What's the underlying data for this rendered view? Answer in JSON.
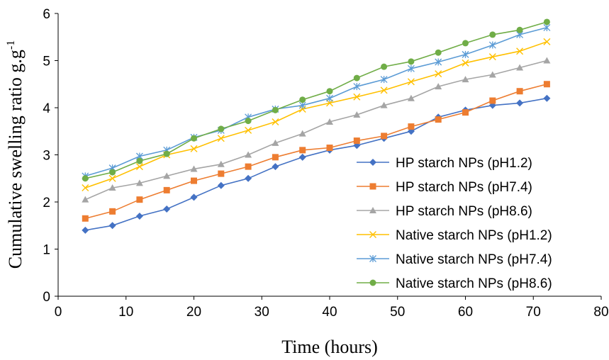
{
  "chart_data": {
    "type": "line",
    "title": "",
    "xlabel": "Time (hours)",
    "ylabel_main": "Cumulative swelling ratio g.g",
    "ylabel_sup": "-1",
    "xlim": [
      0,
      80
    ],
    "ylim": [
      0,
      6
    ],
    "x_ticks": [
      "0",
      "10",
      "20",
      "30",
      "40",
      "50",
      "60",
      "70",
      "80"
    ],
    "y_ticks": [
      "0",
      "1",
      "2",
      "3",
      "4",
      "5",
      "6"
    ],
    "grid": false,
    "legend_position": "bottom-right",
    "x": [
      4,
      8,
      12,
      16,
      20,
      24,
      28,
      32,
      36,
      40,
      44,
      48,
      52,
      56,
      60,
      64,
      68,
      72
    ],
    "series": [
      {
        "name": "HP starch NPs (pH1.2)",
        "color": "#4472C4",
        "marker": "diamond",
        "values": [
          1.4,
          1.5,
          1.7,
          1.85,
          2.1,
          2.35,
          2.5,
          2.75,
          2.95,
          3.1,
          3.2,
          3.35,
          3.5,
          3.8,
          3.95,
          4.05,
          4.1,
          4.2
        ]
      },
      {
        "name": "HP starch NPs (pH7.4)",
        "color": "#ED7D31",
        "marker": "square",
        "values": [
          1.65,
          1.8,
          2.05,
          2.25,
          2.45,
          2.6,
          2.75,
          2.95,
          3.1,
          3.15,
          3.3,
          3.4,
          3.6,
          3.75,
          3.9,
          4.15,
          4.35,
          4.5
        ]
      },
      {
        "name": "HP starch NPs (pH8.6)",
        "color": "#A5A5A5",
        "marker": "triangle",
        "values": [
          2.05,
          2.3,
          2.4,
          2.55,
          2.7,
          2.8,
          3.0,
          3.25,
          3.45,
          3.7,
          3.85,
          4.05,
          4.2,
          4.45,
          4.6,
          4.7,
          4.85,
          5.0
        ]
      },
      {
        "name": "Native starch NPs (pH1.2)",
        "color": "#FFC000",
        "marker": "x",
        "values": [
          2.3,
          2.5,
          2.75,
          3.0,
          3.13,
          3.35,
          3.52,
          3.7,
          3.97,
          4.1,
          4.23,
          4.37,
          4.55,
          4.72,
          4.95,
          5.08,
          5.2,
          5.4
        ]
      },
      {
        "name": "Native starch NPs (pH7.4)",
        "color": "#5B9BD5",
        "marker": "star",
        "values": [
          2.55,
          2.72,
          2.97,
          3.1,
          3.37,
          3.52,
          3.8,
          3.97,
          4.05,
          4.2,
          4.45,
          4.6,
          4.83,
          4.97,
          5.13,
          5.33,
          5.55,
          5.7
        ]
      },
      {
        "name": "Native starch NPs (pH8.6)",
        "color": "#70AD47",
        "marker": "circle",
        "values": [
          2.5,
          2.63,
          2.87,
          3.02,
          3.35,
          3.55,
          3.72,
          3.95,
          4.17,
          4.35,
          4.63,
          4.87,
          4.98,
          5.17,
          5.37,
          5.55,
          5.65,
          5.82
        ]
      }
    ]
  }
}
